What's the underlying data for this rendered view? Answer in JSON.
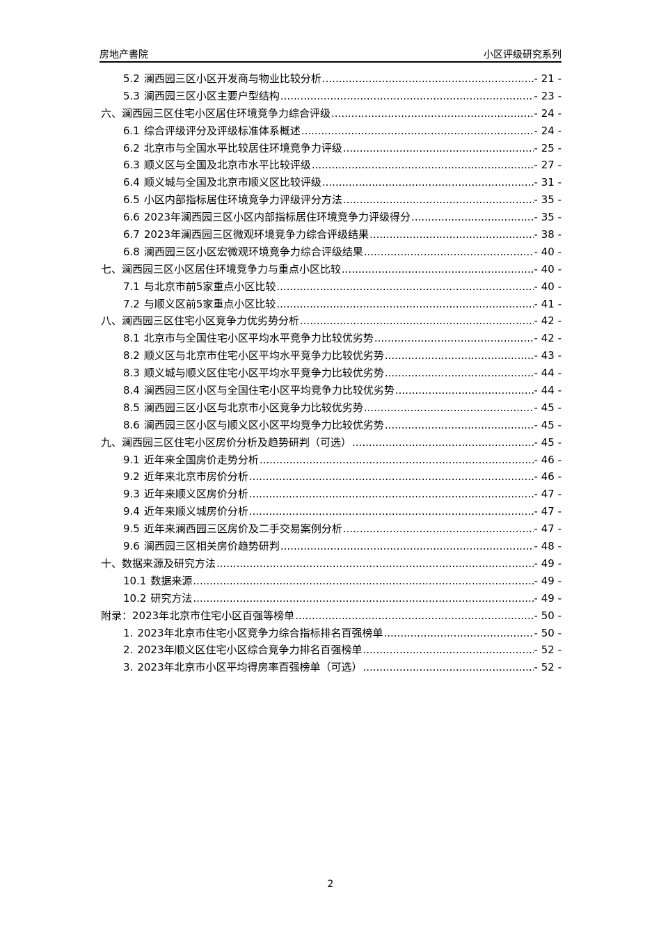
{
  "header": {
    "left": "房地产書院",
    "right": "小区评级研究系列"
  },
  "toc": [
    {
      "level": 2,
      "num": "5.2",
      "title": "澜西园三区小区开发商与物业比较分析",
      "page": "- 21 -"
    },
    {
      "level": 2,
      "num": "5.3",
      "title": "澜西园三区小区主要户型结构",
      "page": "- 23 -"
    },
    {
      "level": 1,
      "num": "",
      "title": "六、澜西园三区住宅小区居住环境竞争力综合评级",
      "page": "- 24 -"
    },
    {
      "level": 2,
      "num": "6.1",
      "title": "综合评级评分及评级标准体系概述",
      "page": "- 24 -"
    },
    {
      "level": 2,
      "num": "6.2",
      "title": "北京市与全国水平比较居住环境竞争力评级",
      "page": "- 25 -"
    },
    {
      "level": 2,
      "num": "6.3",
      "title": "顺义区与全国及北京市水平比较评级",
      "page": "- 27 -"
    },
    {
      "level": 2,
      "num": "6.4",
      "title": "顺义城与全国及北京市顺义区比较评级",
      "page": "- 31 -"
    },
    {
      "level": 2,
      "num": "6.5",
      "title": "小区内部指标居住环境竞争力评级评分方法",
      "page": "- 35 -"
    },
    {
      "level": 2,
      "num": "6.6",
      "title": "2023年澜西园三区小区内部指标居住环境竞争力评级得分",
      "page": "- 35 -"
    },
    {
      "level": 2,
      "num": "6.7",
      "title": "2023年澜西园三区微观环境竞争力综合评级结果",
      "page": "- 38 -"
    },
    {
      "level": 2,
      "num": "6.8",
      "title": "澜西园三区小区宏微观环境竞争力综合评级结果",
      "page": "- 40 -"
    },
    {
      "level": 1,
      "num": "",
      "title": "七、澜西园三区小区居住环境竞争力与重点小区比较",
      "page": "- 40 -"
    },
    {
      "level": 2,
      "num": "7.1",
      "title": "与北京市前5家重点小区比较",
      "page": "- 40 -"
    },
    {
      "level": 2,
      "num": "7.2",
      "title": "与顺义区前5家重点小区比较",
      "page": "- 41 -"
    },
    {
      "level": 1,
      "num": "",
      "title": "八、澜西园三区住宅小区竞争力优劣势分析",
      "page": "- 42 -"
    },
    {
      "level": 2,
      "num": "8.1",
      "title": "北京市与全国住宅小区平均水平竞争力比较优劣势",
      "page": "- 42 -"
    },
    {
      "level": 2,
      "num": "8.2",
      "title": "顺义区与北京市住宅小区平均水平竞争力比较优劣势",
      "page": "- 43 -"
    },
    {
      "level": 2,
      "num": "8.3",
      "title": "顺义城与顺义区住宅小区平均水平竞争力比较优劣势",
      "page": "- 44 -"
    },
    {
      "level": 2,
      "num": "8.4",
      "title": "澜西园三区小区与全国住宅小区平均竞争力比较优劣势",
      "page": "- 44 -"
    },
    {
      "level": 2,
      "num": "8.5",
      "title": "澜西园三区小区与北京市小区竞争力比较优劣势",
      "page": "- 45 -"
    },
    {
      "level": 2,
      "num": "8.6",
      "title": "澜西园三区小区与顺义区小区平均竞争力比较优劣势",
      "page": "- 45 -"
    },
    {
      "level": 1,
      "num": "",
      "title": "九、澜西园三区住宅小区房价分析及趋势研判（可选）",
      "page": "- 45 -"
    },
    {
      "level": 2,
      "num": "9.1",
      "title": "近年来全国房价走势分析",
      "page": "- 46 -"
    },
    {
      "level": 2,
      "num": "9.2",
      "title": "近年来北京市房价分析",
      "page": "- 46 -"
    },
    {
      "level": 2,
      "num": "9.3",
      "title": "近年来顺义区房价分析",
      "page": "- 47 -"
    },
    {
      "level": 2,
      "num": "9.4",
      "title": "近年来顺义城房价分析",
      "page": "- 47 -"
    },
    {
      "level": 2,
      "num": "9.5",
      "title": "近年来澜西园三区房价及二手交易案例分析",
      "page": "- 47 -"
    },
    {
      "level": 2,
      "num": "9.6",
      "title": "澜西园三区相关房价趋势研判",
      "page": "- 48 -"
    },
    {
      "level": 1,
      "num": "",
      "title": "十、数据来源及研究方法",
      "page": "- 49 -"
    },
    {
      "level": 2,
      "num": "10.1",
      "title": "数据来源",
      "page": "- 49 -"
    },
    {
      "level": 2,
      "num": "10.2",
      "title": "研究方法",
      "page": "- 49 -"
    },
    {
      "level": 1,
      "num": "",
      "title": "附录：2023年北京市住宅小区百强等榜单",
      "page": "- 50 -"
    },
    {
      "level": 2,
      "num": "1.",
      "title": "2023年北京市住宅小区竞争力综合指标排名百强榜单",
      "page": "- 50 -"
    },
    {
      "level": 2,
      "num": "2.",
      "title": "2023年顺义区住宅小区综合竞争力排名百强榜单",
      "page": "- 52 -"
    },
    {
      "level": 2,
      "num": "3.",
      "title": "2023年北京市小区平均得房率百强榜单（可选）",
      "page": "- 52 -"
    }
  ],
  "footer": {
    "page_number": "2"
  }
}
